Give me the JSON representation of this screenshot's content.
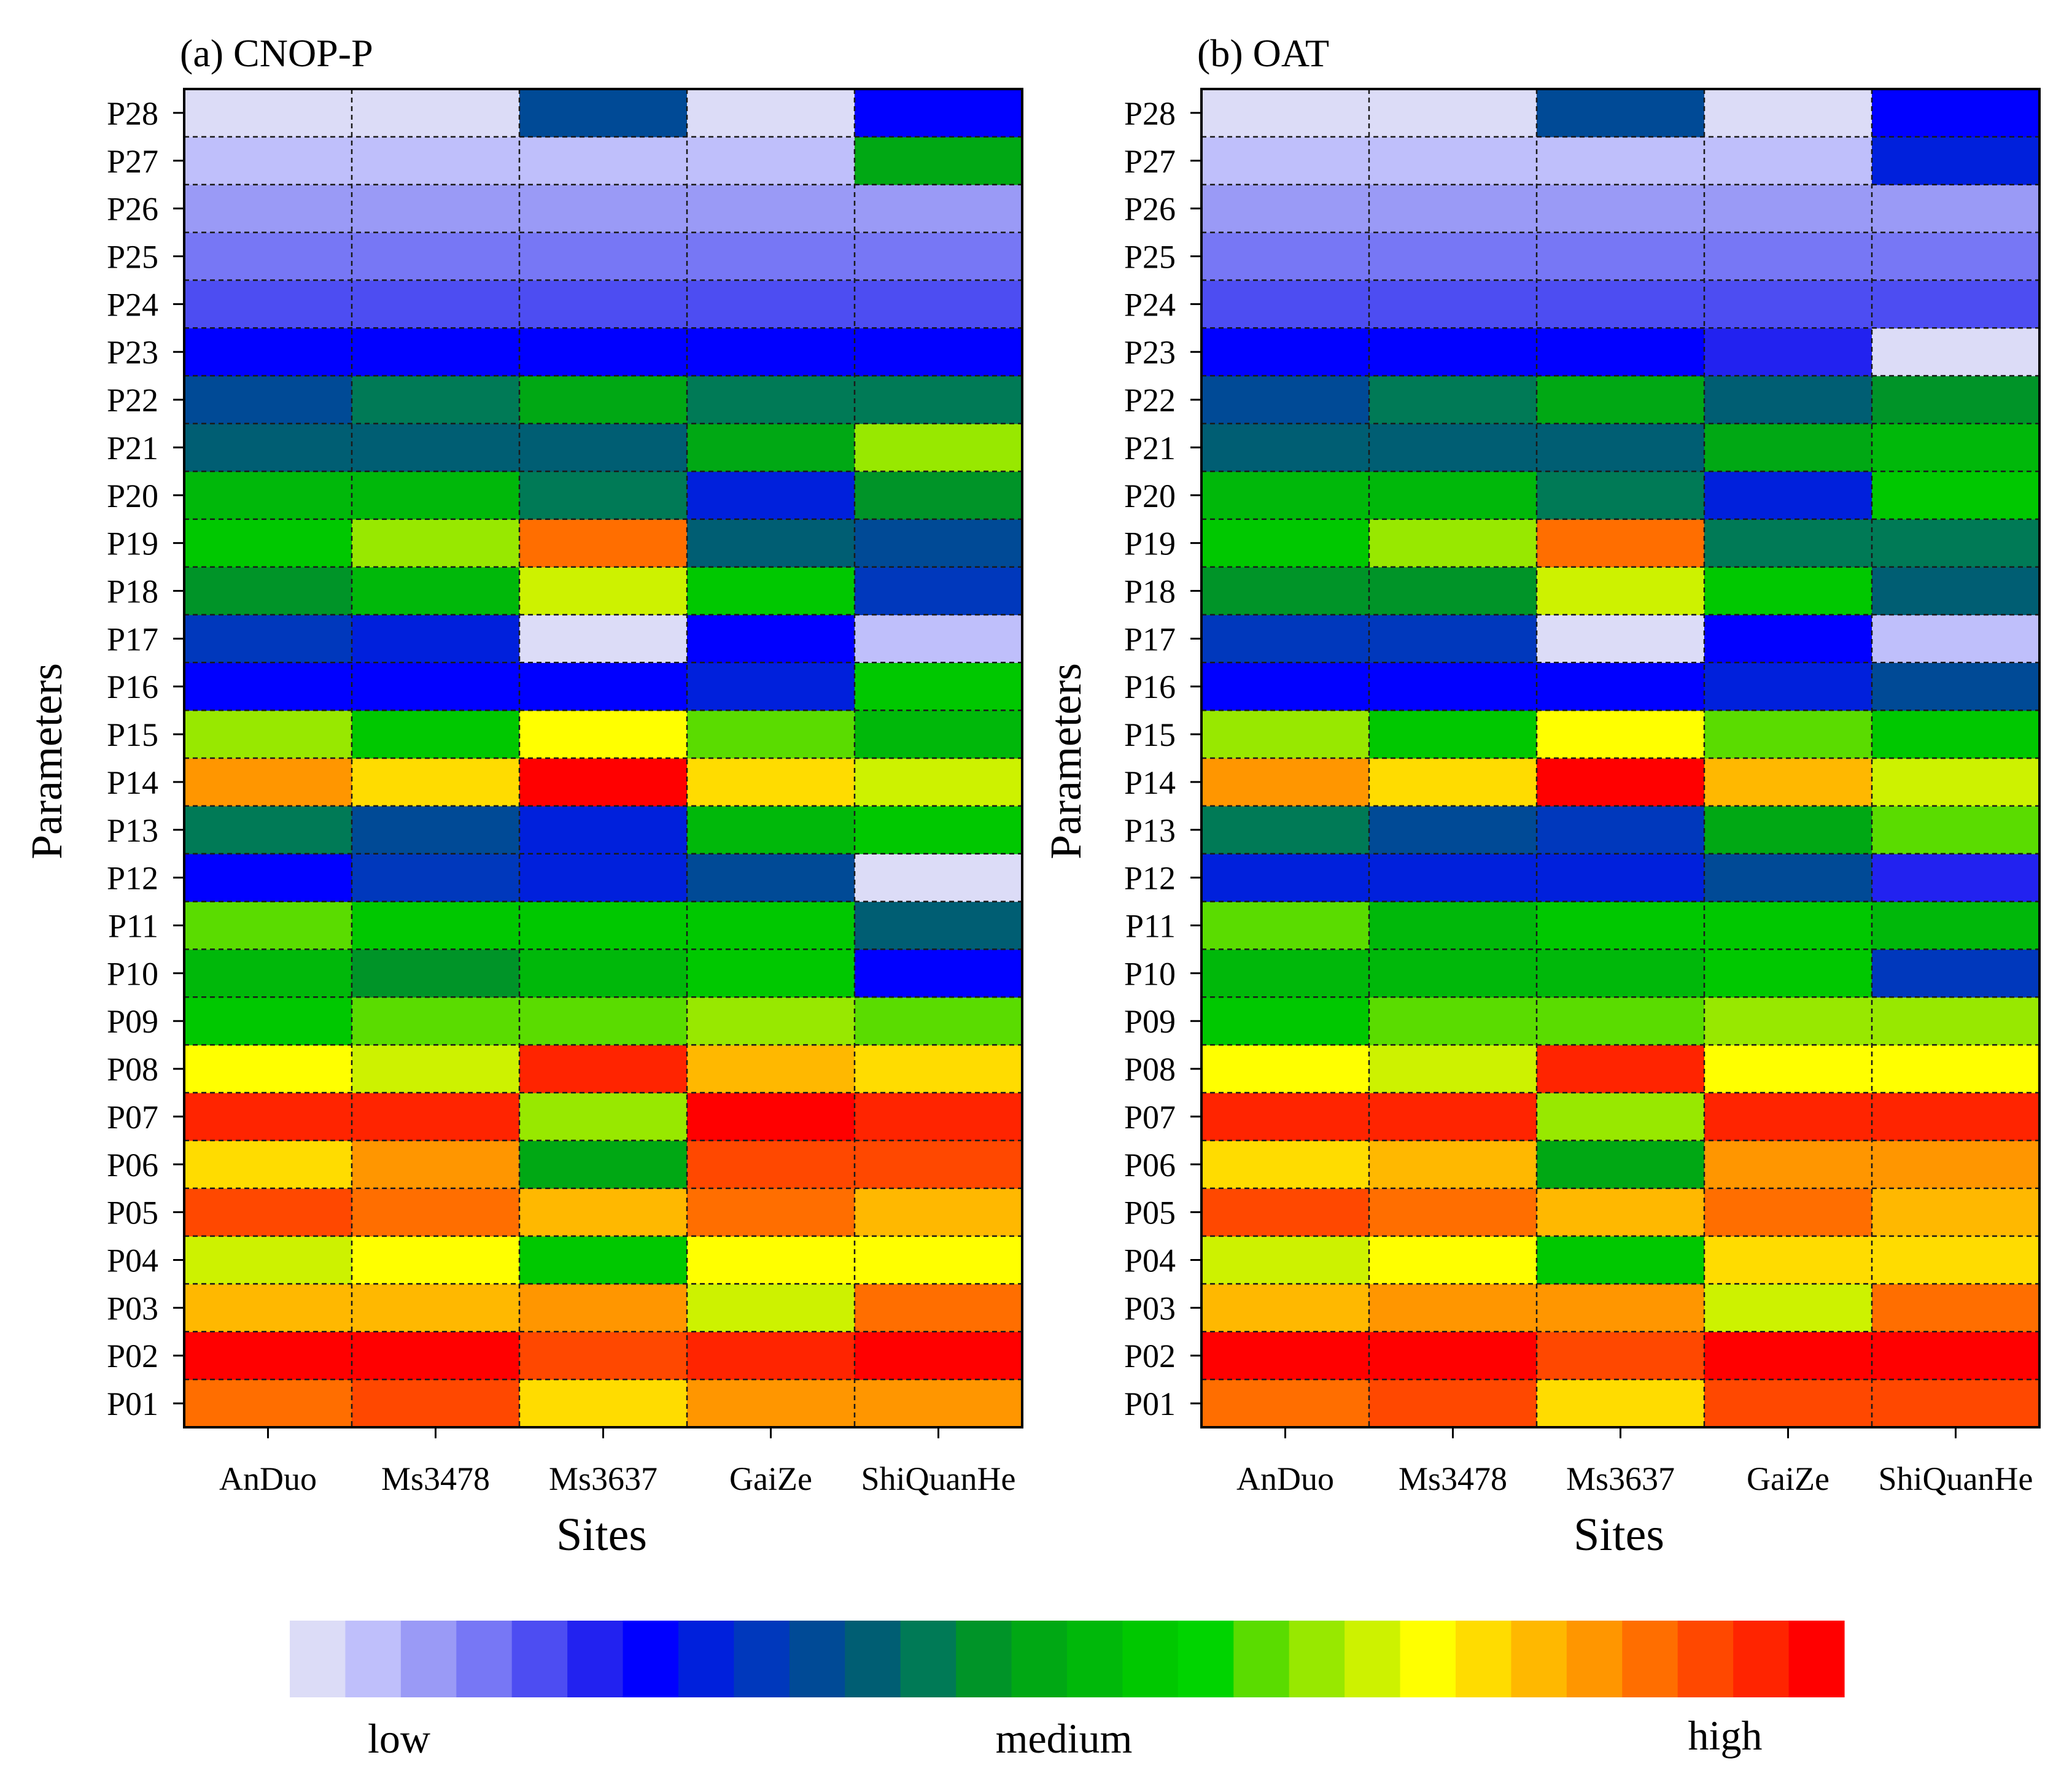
{
  "legend": {
    "labels": {
      "low": "low",
      "medium": "medium",
      "high": "high"
    },
    "colors": [
      "#dcdcf7",
      "#bfbffb",
      "#9a9af6",
      "#7777f5",
      "#4d4df2",
      "#2222f0",
      "#0000ff",
      "#0020dc",
      "#0038bc",
      "#004a96",
      "#005e73",
      "#007a56",
      "#009428",
      "#00a814",
      "#00b80a",
      "#00c800",
      "#00d400",
      "#5adc00",
      "#98e800",
      "#cdf200",
      "#ffff00",
      "#ffdc00",
      "#ffb800",
      "#ff9600",
      "#ff6e00",
      "#ff4800",
      "#ff2400",
      "#ff0000"
    ]
  },
  "chart_data": [
    {
      "type": "heatmap",
      "title": "(a) CNOP-P",
      "xlabel": "Sites",
      "ylabel": "Parameters",
      "x_categories": [
        "AnDuo",
        "Ms3478",
        "Ms3637",
        "GaiZe",
        "ShiQuanHe"
      ],
      "y_categories": [
        "P01",
        "P02",
        "P03",
        "P04",
        "P05",
        "P06",
        "P07",
        "P08",
        "P09",
        "P10",
        "P11",
        "P12",
        "P13",
        "P14",
        "P15",
        "P16",
        "P17",
        "P18",
        "P19",
        "P20",
        "P21",
        "P22",
        "P23",
        "P24",
        "P25",
        "P26",
        "P27",
        "P28"
      ],
      "color_scale": "ordinal 0-27, 0 = low, 27 = high",
      "values": [
        [
          24,
          25,
          21,
          23,
          23
        ],
        [
          27,
          27,
          25,
          26,
          27
        ],
        [
          22,
          22,
          23,
          19,
          24
        ],
        [
          19,
          20,
          15,
          20,
          20
        ],
        [
          25,
          24,
          22,
          24,
          22
        ],
        [
          21,
          23,
          13,
          25,
          25
        ],
        [
          26,
          26,
          18,
          27,
          26
        ],
        [
          20,
          19,
          26,
          22,
          21
        ],
        [
          15,
          17,
          17,
          18,
          17
        ],
        [
          14,
          12,
          14,
          15,
          6
        ],
        [
          17,
          15,
          15,
          15,
          10
        ],
        [
          6,
          8,
          7,
          9,
          0
        ],
        [
          11,
          9,
          7,
          14,
          15
        ],
        [
          23,
          21,
          27,
          21,
          19
        ],
        [
          18,
          15,
          20,
          17,
          14
        ],
        [
          6,
          6,
          6,
          7,
          15
        ],
        [
          8,
          7,
          0,
          6,
          1
        ],
        [
          12,
          14,
          19,
          15,
          8
        ],
        [
          15,
          18,
          24,
          10,
          9
        ],
        [
          14,
          14,
          11,
          7,
          12
        ],
        [
          10,
          10,
          10,
          13,
          18
        ],
        [
          9,
          11,
          13,
          11,
          11
        ],
        [
          6,
          6,
          6,
          6,
          6
        ],
        [
          4,
          4,
          4,
          4,
          4
        ],
        [
          3,
          3,
          3,
          3,
          3
        ],
        [
          2,
          2,
          2,
          2,
          2
        ],
        [
          1,
          1,
          1,
          1,
          13
        ],
        [
          0,
          0,
          9,
          0,
          6
        ]
      ]
    },
    {
      "type": "heatmap",
      "title": "(b) OAT",
      "xlabel": "Sites",
      "ylabel": "Parameters",
      "x_categories": [
        "AnDuo",
        "Ms3478",
        "Ms3637",
        "GaiZe",
        "ShiQuanHe"
      ],
      "y_categories": [
        "P01",
        "P02",
        "P03",
        "P04",
        "P05",
        "P06",
        "P07",
        "P08",
        "P09",
        "P10",
        "P11",
        "P12",
        "P13",
        "P14",
        "P15",
        "P16",
        "P17",
        "P18",
        "P19",
        "P20",
        "P21",
        "P22",
        "P23",
        "P24",
        "P25",
        "P26",
        "P27",
        "P28"
      ],
      "color_scale": "ordinal 0-27, 0 = low, 27 = high",
      "values": [
        [
          24,
          25,
          21,
          25,
          25
        ],
        [
          27,
          27,
          25,
          27,
          27
        ],
        [
          22,
          23,
          23,
          19,
          24
        ],
        [
          19,
          20,
          15,
          21,
          21
        ],
        [
          25,
          24,
          22,
          24,
          22
        ],
        [
          21,
          22,
          13,
          23,
          23
        ],
        [
          26,
          26,
          18,
          26,
          26
        ],
        [
          20,
          19,
          26,
          20,
          20
        ],
        [
          15,
          17,
          17,
          18,
          18
        ],
        [
          14,
          14,
          14,
          15,
          8
        ],
        [
          17,
          14,
          15,
          15,
          14
        ],
        [
          7,
          7,
          7,
          9,
          5
        ],
        [
          11,
          9,
          8,
          13,
          17
        ],
        [
          23,
          21,
          27,
          22,
          19
        ],
        [
          18,
          15,
          20,
          17,
          15
        ],
        [
          6,
          6,
          6,
          7,
          9
        ],
        [
          8,
          8,
          0,
          6,
          1
        ],
        [
          12,
          12,
          19,
          15,
          10
        ],
        [
          15,
          18,
          24,
          11,
          11
        ],
        [
          14,
          14,
          11,
          7,
          15
        ],
        [
          10,
          10,
          10,
          13,
          14
        ],
        [
          9,
          11,
          13,
          10,
          12
        ],
        [
          6,
          6,
          6,
          5,
          0
        ],
        [
          4,
          4,
          4,
          4,
          4
        ],
        [
          3,
          3,
          3,
          3,
          3
        ],
        [
          2,
          2,
          2,
          2,
          2
        ],
        [
          1,
          1,
          1,
          1,
          7
        ],
        [
          0,
          0,
          9,
          0,
          6
        ]
      ]
    }
  ]
}
